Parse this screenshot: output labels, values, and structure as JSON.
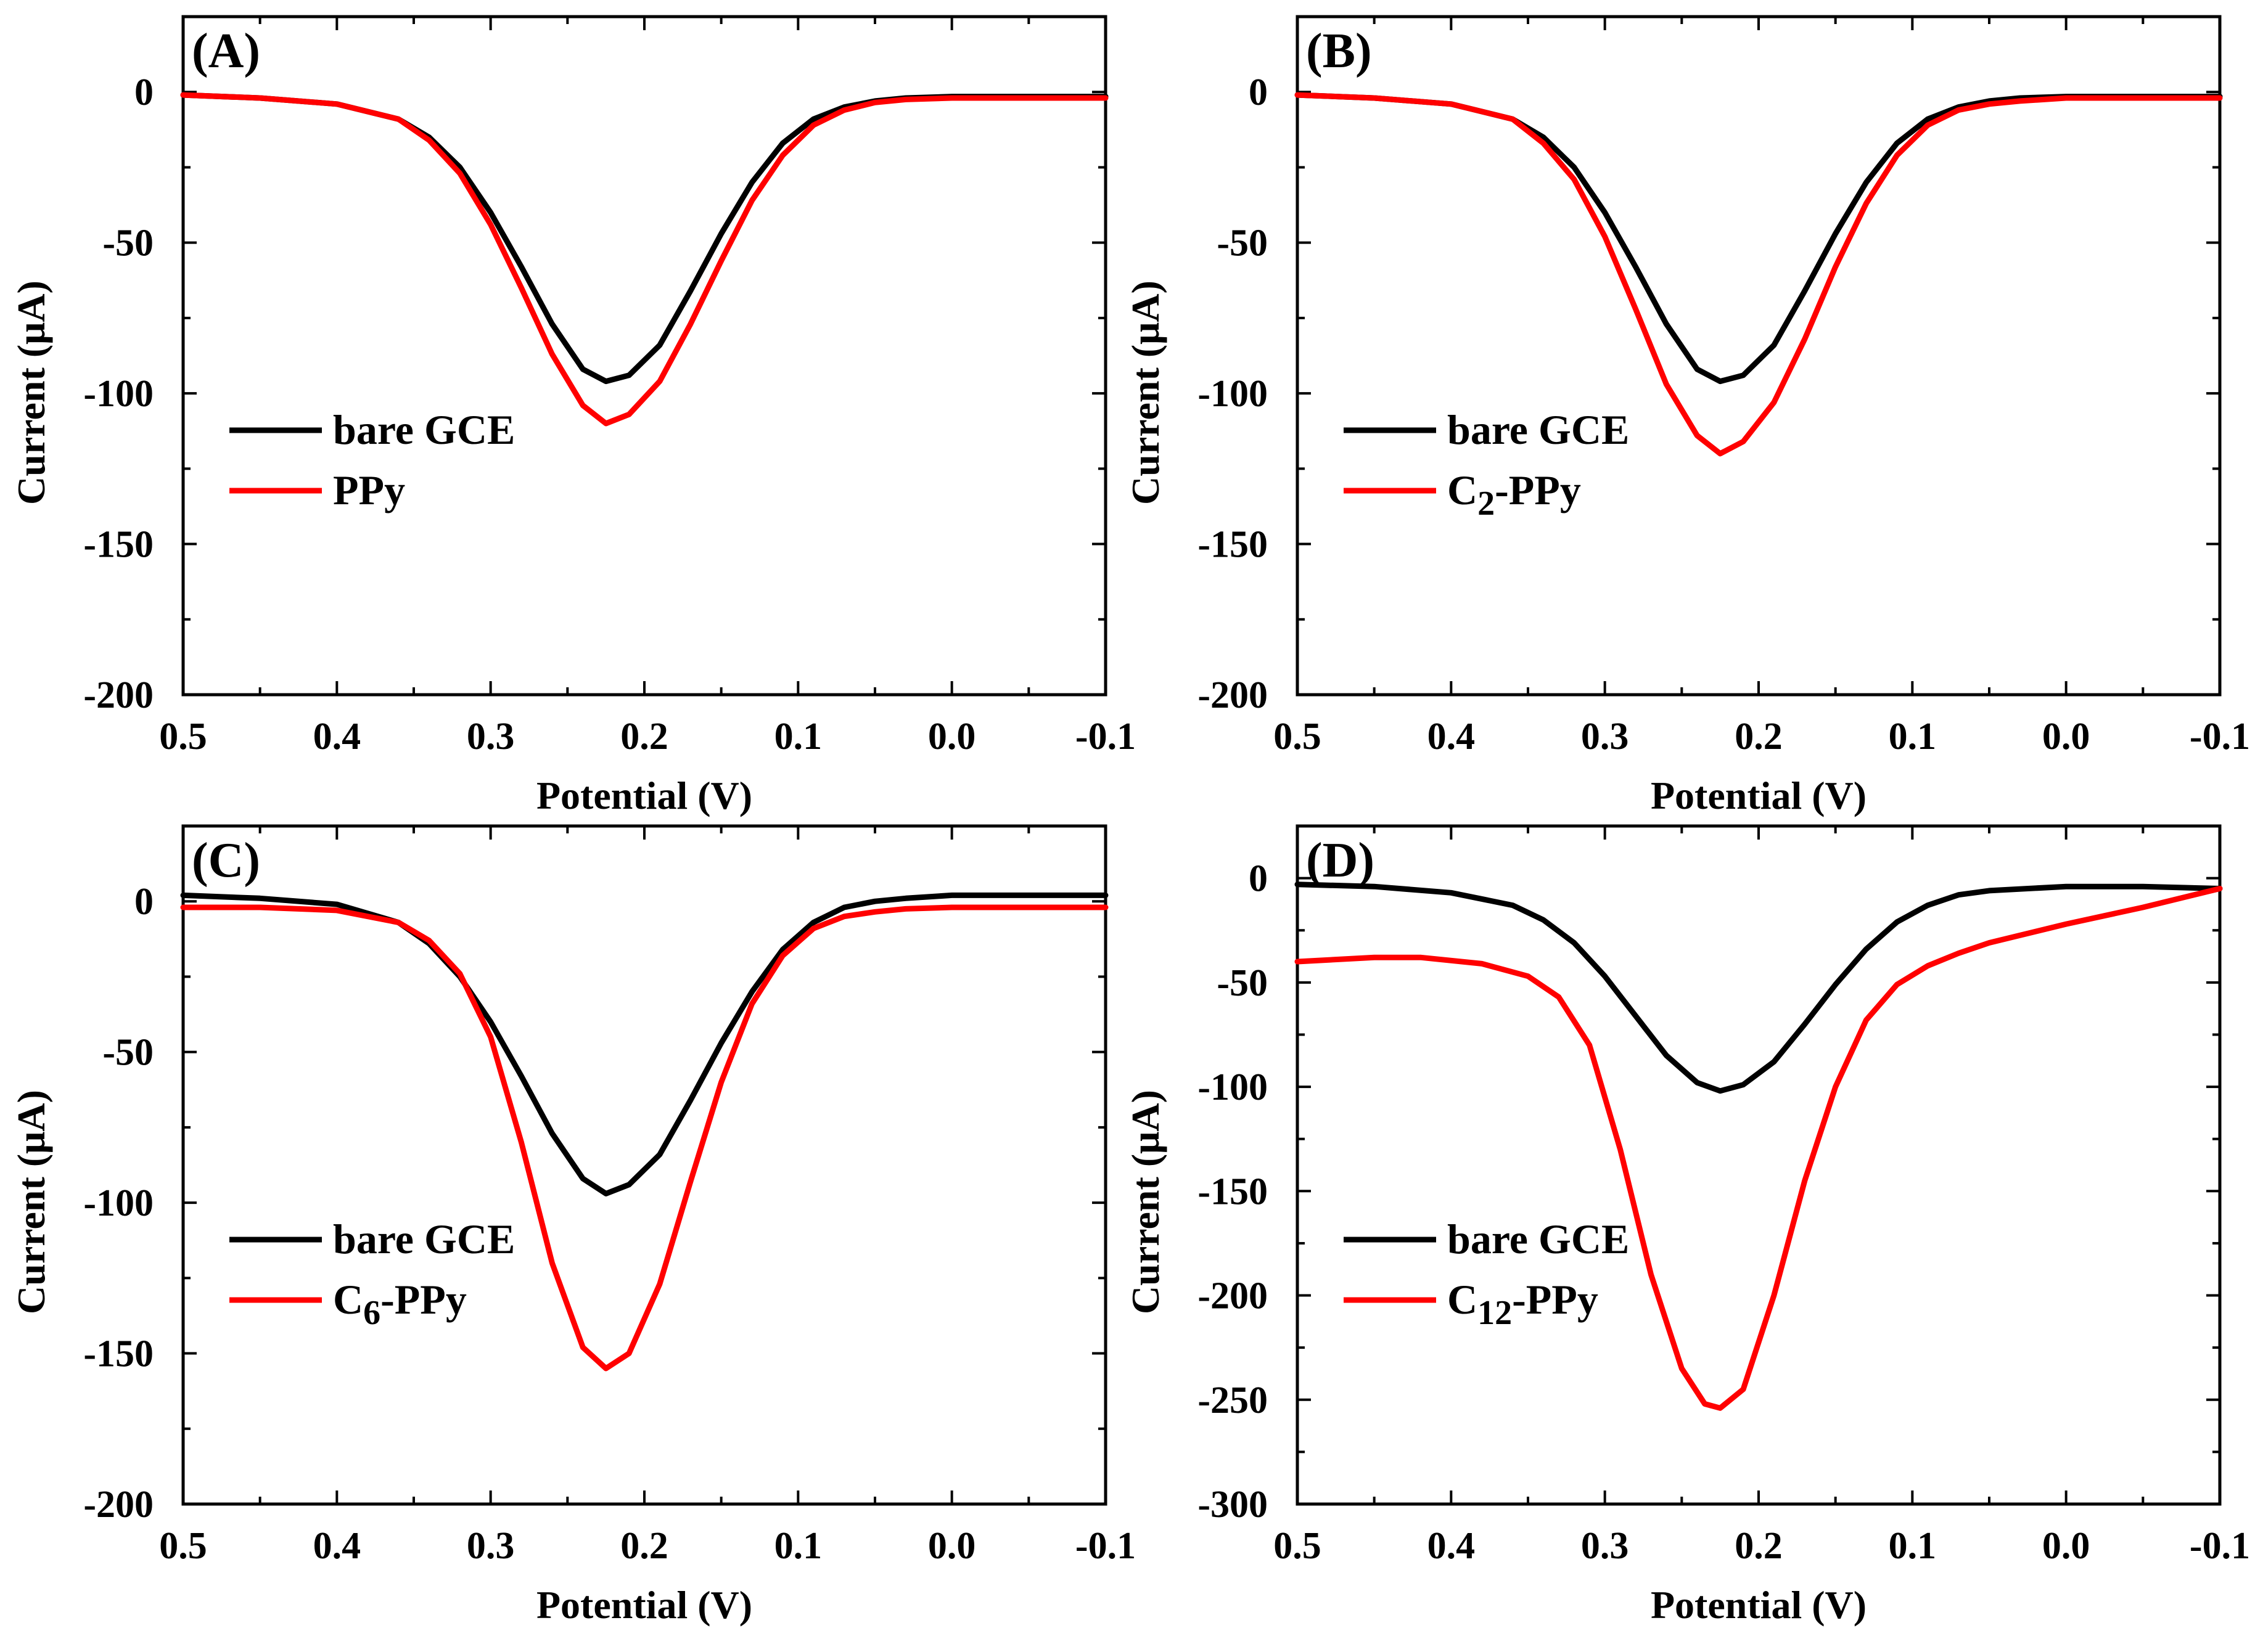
{
  "chart_data": [
    {
      "type": "line",
      "panel_label": "(A)",
      "xlabel": "Potential (V)",
      "ylabel": "Current (μA)",
      "xlim": [
        0.5,
        -0.1
      ],
      "ylim": [
        -200,
        25
      ],
      "xticks": [
        0.5,
        0.4,
        0.3,
        0.2,
        0.1,
        0.0,
        -0.1
      ],
      "xtick_labels": [
        "0.5",
        "0.4",
        "0.3",
        "0.2",
        "0.1",
        "0.0",
        "-0.1"
      ],
      "yticks": [
        0,
        -50,
        -100,
        -150,
        -200
      ],
      "ytick_labels": [
        "0",
        "-50",
        "-100",
        "-150",
        "-200"
      ],
      "legend_position": "lower-left",
      "series": [
        {
          "name": "bare GCE",
          "label_main": "bare GCE",
          "label_sub": "",
          "label_tail": "",
          "color": "#000000",
          "x": [
            0.5,
            0.45,
            0.4,
            0.36,
            0.34,
            0.32,
            0.3,
            0.28,
            0.26,
            0.24,
            0.225,
            0.21,
            0.19,
            0.17,
            0.15,
            0.13,
            0.11,
            0.09,
            0.07,
            0.05,
            0.03,
            0.0,
            -0.05,
            -0.1
          ],
          "y": [
            -1,
            -2,
            -4,
            -9,
            -15,
            -25,
            -40,
            -58,
            -77,
            -92,
            -96,
            -94,
            -84,
            -66,
            -47,
            -30,
            -17,
            -9,
            -5,
            -3,
            -2,
            -1.5,
            -1.5,
            -1.5
          ]
        },
        {
          "name": "PPy",
          "label_main": "PPy",
          "label_sub": "",
          "label_tail": "",
          "color": "#ff0000",
          "x": [
            0.5,
            0.45,
            0.4,
            0.36,
            0.34,
            0.32,
            0.3,
            0.28,
            0.26,
            0.24,
            0.225,
            0.21,
            0.19,
            0.17,
            0.15,
            0.13,
            0.11,
            0.09,
            0.07,
            0.05,
            0.03,
            0.0,
            -0.05,
            -0.1
          ],
          "y": [
            -1,
            -2,
            -4,
            -9,
            -16,
            -27,
            -44,
            -65,
            -87,
            -104,
            -110,
            -107,
            -96,
            -77,
            -56,
            -36,
            -21,
            -11,
            -6,
            -3.5,
            -2.5,
            -2,
            -2,
            -2
          ]
        }
      ]
    },
    {
      "type": "line",
      "panel_label": "(B)",
      "xlabel": "Potential (V)",
      "ylabel": "Current (μA)",
      "xlim": [
        0.5,
        -0.1
      ],
      "ylim": [
        -200,
        25
      ],
      "xticks": [
        0.5,
        0.4,
        0.3,
        0.2,
        0.1,
        0.0,
        -0.1
      ],
      "xtick_labels": [
        "0.5",
        "0.4",
        "0.3",
        "0.2",
        "0.1",
        "0.0",
        "-0.1"
      ],
      "yticks": [
        0,
        -50,
        -100,
        -150,
        -200
      ],
      "ytick_labels": [
        "0",
        "-50",
        "-100",
        "-150",
        "-200"
      ],
      "legend_position": "lower-left",
      "series": [
        {
          "name": "bare GCE",
          "label_main": "bare GCE",
          "label_sub": "",
          "label_tail": "",
          "color": "#000000",
          "x": [
            0.5,
            0.45,
            0.4,
            0.36,
            0.34,
            0.32,
            0.3,
            0.28,
            0.26,
            0.24,
            0.225,
            0.21,
            0.19,
            0.17,
            0.15,
            0.13,
            0.11,
            0.09,
            0.07,
            0.05,
            0.03,
            0.0,
            -0.05,
            -0.1
          ],
          "y": [
            -1,
            -2,
            -4,
            -9,
            -15,
            -25,
            -40,
            -58,
            -77,
            -92,
            -96,
            -94,
            -84,
            -66,
            -47,
            -30,
            -17,
            -9,
            -5,
            -3,
            -2,
            -1.5,
            -1.5,
            -1.5
          ]
        },
        {
          "name": "C2-PPy",
          "label_main": "C",
          "label_sub": "2",
          "label_tail": "-PPy",
          "color": "#ff0000",
          "x": [
            0.5,
            0.45,
            0.4,
            0.36,
            0.34,
            0.32,
            0.3,
            0.28,
            0.26,
            0.24,
            0.225,
            0.21,
            0.19,
            0.17,
            0.15,
            0.13,
            0.11,
            0.09,
            0.07,
            0.05,
            0.03,
            0.0,
            -0.05,
            -0.1
          ],
          "y": [
            -1,
            -2,
            -4,
            -9,
            -17,
            -29,
            -48,
            -72,
            -97,
            -114,
            -120,
            -116,
            -103,
            -82,
            -58,
            -37,
            -21,
            -11,
            -6,
            -4,
            -3,
            -2,
            -2,
            -2
          ]
        }
      ]
    },
    {
      "type": "line",
      "panel_label": "(C)",
      "xlabel": "Potential (V)",
      "ylabel": "Current (μA)",
      "xlim": [
        0.5,
        -0.1
      ],
      "ylim": [
        -200,
        25
      ],
      "xticks": [
        0.5,
        0.4,
        0.3,
        0.2,
        0.1,
        0.0,
        -0.1
      ],
      "xtick_labels": [
        "0.5",
        "0.4",
        "0.3",
        "0.2",
        "0.1",
        "0.0",
        "-0.1"
      ],
      "yticks": [
        0,
        -50,
        -100,
        -150,
        -200
      ],
      "ytick_labels": [
        "0",
        "-50",
        "-100",
        "-150",
        "-200"
      ],
      "legend_position": "lower-left",
      "series": [
        {
          "name": "bare GCE",
          "label_main": "bare GCE",
          "label_sub": "",
          "label_tail": "",
          "color": "#000000",
          "x": [
            0.5,
            0.45,
            0.4,
            0.36,
            0.34,
            0.32,
            0.3,
            0.28,
            0.26,
            0.24,
            0.225,
            0.21,
            0.19,
            0.17,
            0.15,
            0.13,
            0.11,
            0.09,
            0.07,
            0.05,
            0.03,
            0.0,
            -0.05,
            -0.1
          ],
          "y": [
            2,
            1,
            -1,
            -7,
            -14,
            -25,
            -40,
            -58,
            -77,
            -92,
            -97,
            -94,
            -84,
            -66,
            -47,
            -30,
            -16,
            -7,
            -2,
            0,
            1,
            2,
            2,
            2
          ]
        },
        {
          "name": "C6-PPy",
          "label_main": "C",
          "label_sub": "6",
          "label_tail": "-PPy",
          "color": "#ff0000",
          "x": [
            0.5,
            0.45,
            0.4,
            0.36,
            0.34,
            0.32,
            0.3,
            0.28,
            0.26,
            0.24,
            0.225,
            0.21,
            0.19,
            0.17,
            0.15,
            0.13,
            0.11,
            0.09,
            0.07,
            0.05,
            0.03,
            0.0,
            -0.05,
            -0.1
          ],
          "y": [
            -2,
            -2,
            -3,
            -7,
            -13,
            -24,
            -45,
            -80,
            -120,
            -148,
            -155,
            -150,
            -127,
            -93,
            -60,
            -34,
            -18,
            -9,
            -5,
            -3.5,
            -2.5,
            -2,
            -2,
            -2
          ]
        }
      ]
    },
    {
      "type": "line",
      "panel_label": "(D)",
      "xlabel": "Potential (V)",
      "ylabel": "Current (μA)",
      "xlim": [
        0.5,
        -0.1
      ],
      "ylim": [
        -300,
        25
      ],
      "xticks": [
        0.5,
        0.4,
        0.3,
        0.2,
        0.1,
        0.0,
        -0.1
      ],
      "xtick_labels": [
        "0.5",
        "0.4",
        "0.3",
        "0.2",
        "0.1",
        "0.0",
        "-0.1"
      ],
      "yticks": [
        0,
        -50,
        -100,
        -150,
        -200,
        -250,
        -300
      ],
      "ytick_labels": [
        "0",
        "-50",
        "-100",
        "-150",
        "-200",
        "-250",
        "-300"
      ],
      "legend_position": "lower-left",
      "series": [
        {
          "name": "bare GCE",
          "label_main": "bare GCE",
          "label_sub": "",
          "label_tail": "",
          "color": "#000000",
          "x": [
            0.5,
            0.45,
            0.4,
            0.36,
            0.34,
            0.32,
            0.3,
            0.28,
            0.26,
            0.24,
            0.225,
            0.21,
            0.19,
            0.17,
            0.15,
            0.13,
            0.11,
            0.09,
            0.07,
            0.05,
            0.0,
            -0.05,
            -0.1
          ],
          "y": [
            -3,
            -4,
            -7,
            -13,
            -20,
            -31,
            -47,
            -66,
            -85,
            -98,
            -102,
            -99,
            -88,
            -70,
            -51,
            -34,
            -21,
            -13,
            -8,
            -6,
            -4,
            -4,
            -5
          ]
        },
        {
          "name": "C12-PPy",
          "label_main": "C",
          "label_sub": "12",
          "label_tail": "-PPy",
          "color": "#ff0000",
          "x": [
            0.5,
            0.45,
            0.42,
            0.38,
            0.35,
            0.33,
            0.31,
            0.29,
            0.27,
            0.25,
            0.235,
            0.225,
            0.21,
            0.19,
            0.17,
            0.15,
            0.13,
            0.11,
            0.09,
            0.07,
            0.05,
            0.0,
            -0.05,
            -0.1
          ],
          "y": [
            -40,
            -38,
            -38,
            -41,
            -47,
            -57,
            -80,
            -130,
            -190,
            -235,
            -252,
            -254,
            -245,
            -200,
            -145,
            -100,
            -68,
            -51,
            -42,
            -36,
            -31,
            -22,
            -14,
            -5
          ]
        }
      ]
    }
  ]
}
